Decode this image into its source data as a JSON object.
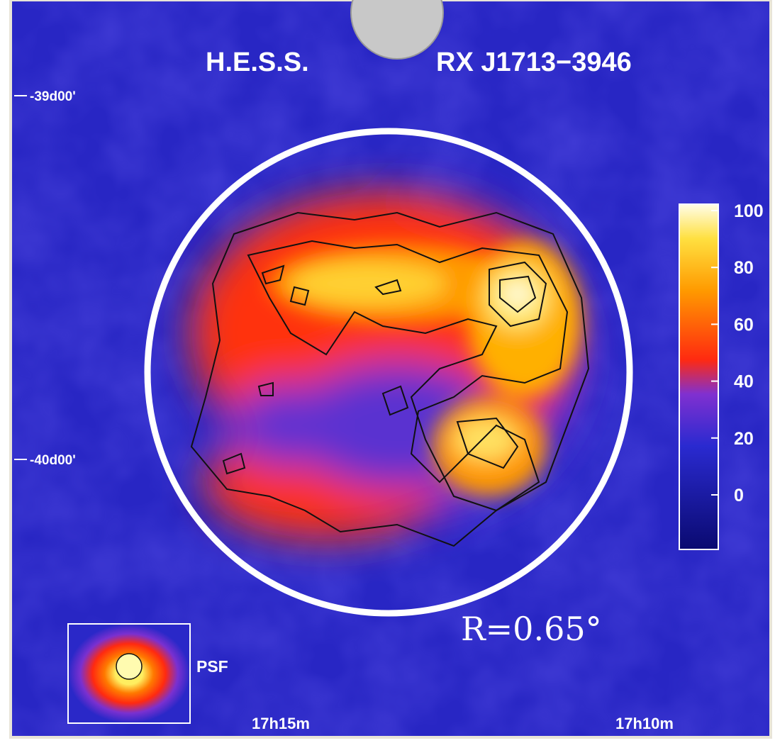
{
  "header": {
    "instrument": "H.E.S.S.",
    "source": "RX J1713−3946"
  },
  "axes": {
    "dec_labels": [
      "-39d00'",
      "-40d00'"
    ],
    "ra_labels": [
      "17h15m",
      "17h10m"
    ]
  },
  "colorbar": {
    "ticks": [
      100,
      80,
      60,
      40,
      20,
      0
    ]
  },
  "psf": {
    "label": "PSF"
  },
  "annotation": {
    "radius": "R=0.65°"
  }
}
